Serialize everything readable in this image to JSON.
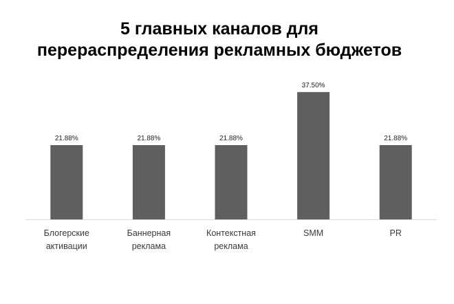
{
  "chart_data": {
    "type": "bar",
    "title": [
      "5 главных каналов для",
      "перераспределения рекламных бюджетов"
    ],
    "categories": [
      [
        "Блогерские",
        "активации"
      ],
      [
        "Баннерная",
        "реклама"
      ],
      [
        "Контекстная",
        "реклама"
      ],
      [
        "SMM"
      ],
      [
        "PR"
      ]
    ],
    "values": [
      21.88,
      21.88,
      21.88,
      37.5,
      21.88
    ],
    "data_labels": [
      "21.88%",
      "21.88%",
      "21.88%",
      "37.50%",
      "21.88%"
    ],
    "xlabel": "",
    "ylabel": "",
    "ylim": [
      0,
      40
    ],
    "grid": false,
    "legend": "none",
    "bar_color": "#5f5f5f",
    "axis_color": "#d9d9d9"
  }
}
